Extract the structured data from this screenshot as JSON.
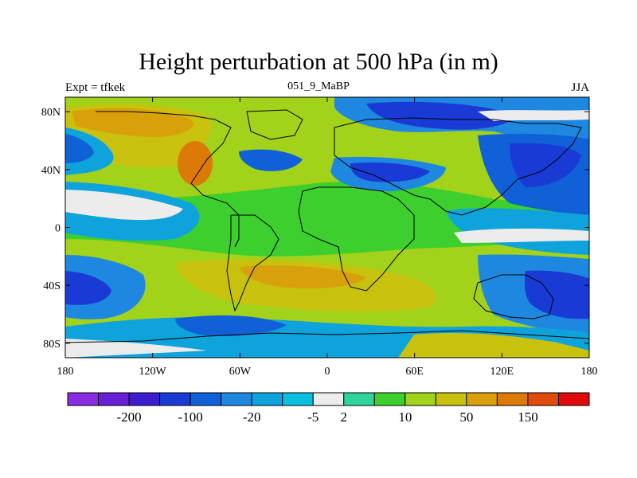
{
  "title": "Height perturbation at 500 hPa (in m)",
  "left_subtitle": "Expt = tfkek",
  "center_subtitle": "051_9_MaBP",
  "right_subtitle": "JJA",
  "map": {
    "projection": "cylindrical-equidistant",
    "lon_range": [
      -180,
      180
    ],
    "lat_range": [
      -90,
      90
    ],
    "lon_ticks": [
      {
        "value": -180,
        "label": "180"
      },
      {
        "value": -120,
        "label": "120W"
      },
      {
        "value": -60,
        "label": "60W"
      },
      {
        "value": 0,
        "label": "0"
      },
      {
        "value": 60,
        "label": "60E"
      },
      {
        "value": 120,
        "label": "120E"
      },
      {
        "value": 180,
        "label": "180"
      }
    ],
    "lat_ticks": [
      {
        "value": 80,
        "label": "80N"
      },
      {
        "value": 40,
        "label": "40N"
      },
      {
        "value": 0,
        "label": "0"
      },
      {
        "value": -40,
        "label": "40S"
      },
      {
        "value": -80,
        "label": "80S"
      }
    ],
    "coastline_color": "#000000"
  },
  "colorbar": {
    "colors": [
      "#8a2be2",
      "#6a1fd8",
      "#3b1fcf",
      "#1a3ad6",
      "#1060d8",
      "#1e88e0",
      "#0fa3dc",
      "#0cbfe0",
      "#ececec",
      "#2fd49a",
      "#3ccf2e",
      "#a2d21a",
      "#c8c20e",
      "#d8a00a",
      "#dc7a08",
      "#e04a0a",
      "#e00a0a"
    ],
    "labels": [
      {
        "after_index": 1,
        "text": "-200"
      },
      {
        "after_index": 3,
        "text": "-100"
      },
      {
        "after_index": 5,
        "text": "-20"
      },
      {
        "after_index": 7,
        "text": "-5"
      },
      {
        "after_index": 8,
        "text": "2"
      },
      {
        "after_index": 10,
        "text": "10"
      },
      {
        "after_index": 12,
        "text": "50"
      },
      {
        "after_index": 14,
        "text": "150"
      }
    ]
  }
}
